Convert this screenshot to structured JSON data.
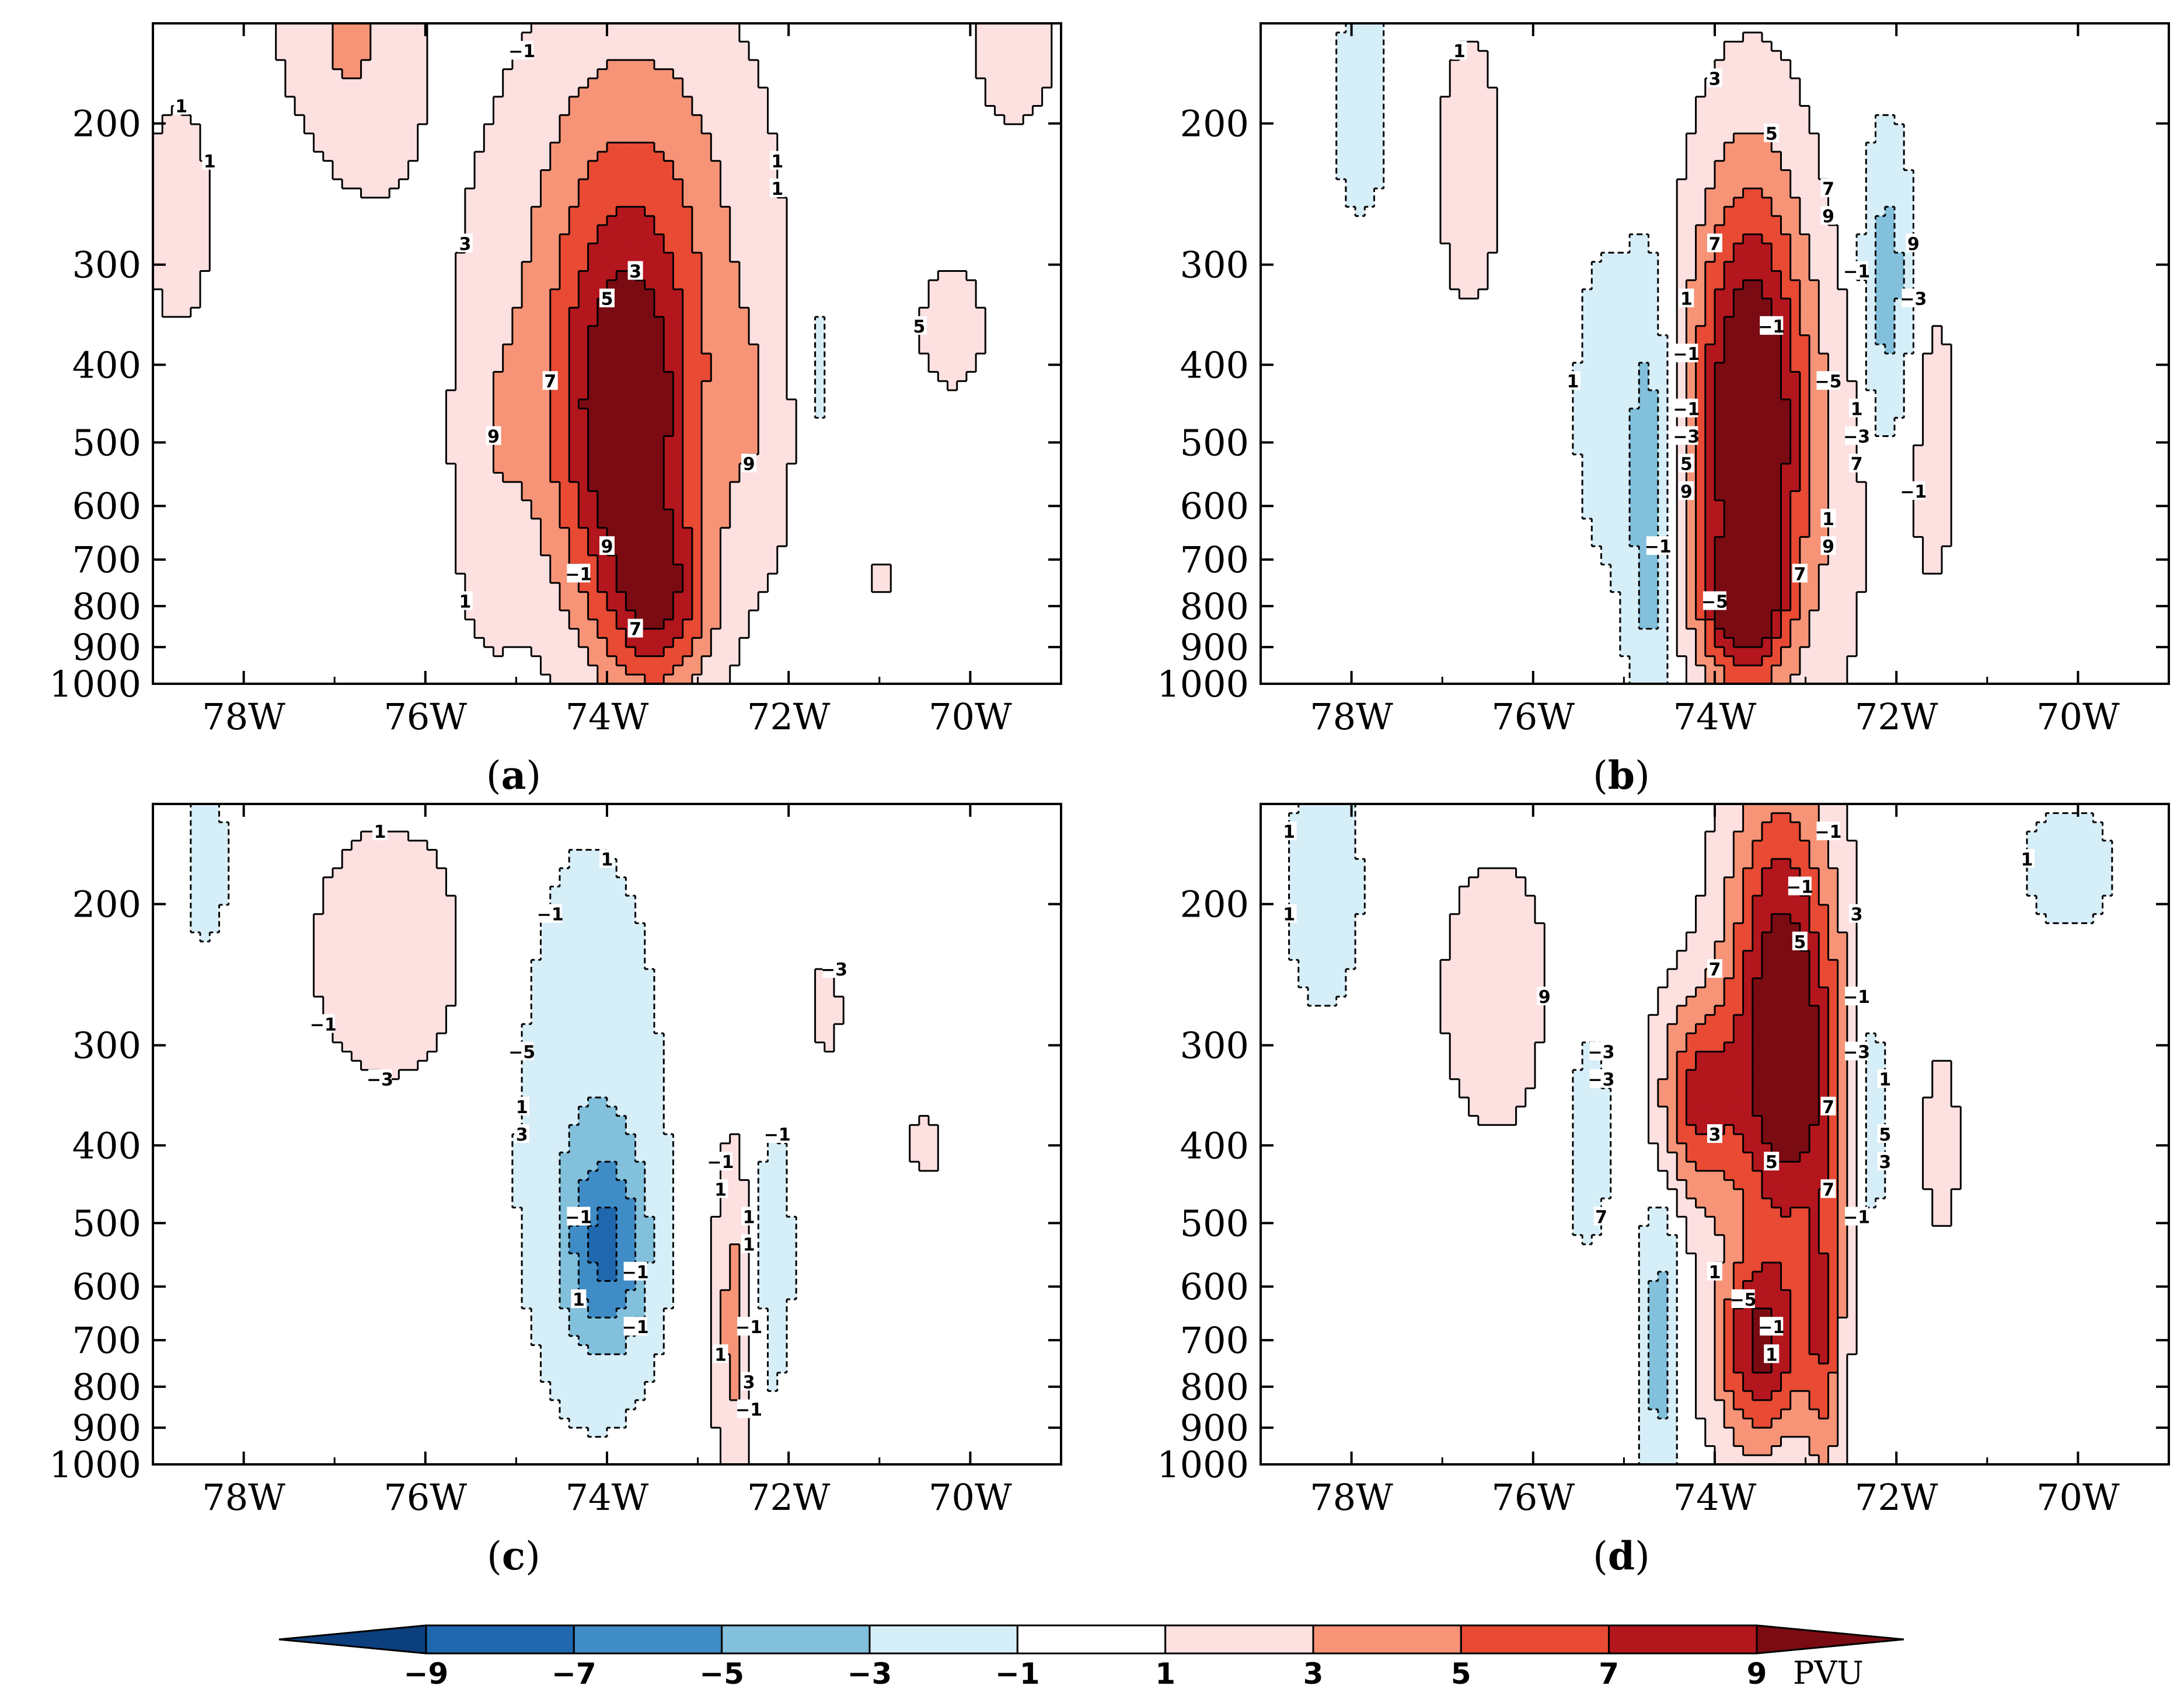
{
  "figure": {
    "colorbar": {
      "levels": [
        "−9",
        "−7",
        "−5",
        "−3",
        "−1",
        "1",
        "3",
        "5",
        "7",
        "9"
      ],
      "unit": "PVU",
      "colors": [
        "#0b3f7e",
        "#1f68ad",
        "#3f8cc6",
        "#82c0dc",
        "#d6eef8",
        "#ffffff",
        "#fde0e0",
        "#f79477",
        "#e84a33",
        "#b4161e",
        "#7a0b12"
      ]
    },
    "style": {
      "axis_color": "#000000",
      "contour_color": "#000000"
    }
  },
  "chart_data": [
    {
      "type": "heatmap",
      "panel": "a",
      "label": "a",
      "title": "",
      "xlabel": "",
      "ylabel": "",
      "xlim": [
        -79,
        -69
      ],
      "ylim": [
        1000,
        150
      ],
      "yscale": "log",
      "x_ticks": [
        -78,
        -76,
        -74,
        -72,
        -70
      ],
      "x_tick_labels": [
        "78W",
        "76W",
        "74W",
        "72W",
        "70W"
      ],
      "y_ticks": [
        200,
        300,
        400,
        500,
        600,
        700,
        800,
        900,
        1000
      ],
      "y_tick_labels": [
        "200",
        "300",
        "400",
        "500",
        "600",
        "700",
        "800",
        "900",
        "1000"
      ],
      "contour_labels": [
        "−1",
        "1",
        "1",
        "1",
        "1",
        "3",
        "3",
        "5",
        "5",
        "7",
        "9",
        "9",
        "9",
        "−1",
        "1",
        "7"
      ],
      "features": [
        {
          "lon": -76.9,
          "lev": 170,
          "amp": 4.0,
          "slon": 0.55,
          "slog": 0.35
        },
        {
          "lon": -77.2,
          "lev": 230,
          "amp": -1.8,
          "slon": 0.55,
          "slog": 0.3
        },
        {
          "lon": -78.7,
          "lev": 260,
          "amp": 1.7,
          "slon": 0.35,
          "slog": 0.3
        },
        {
          "lon": -73.8,
          "lev": 500,
          "amp": 10.0,
          "slon": 0.6,
          "slog": 0.4
        },
        {
          "lon": -73.4,
          "lev": 800,
          "amp": 6.0,
          "slon": 0.4,
          "slog": 0.18
        },
        {
          "lon": -73.7,
          "lev": 260,
          "amp": 4.6,
          "slon": 0.9,
          "slog": 0.45
        },
        {
          "lon": -75.3,
          "lev": 520,
          "amp": 2.2,
          "slon": 0.3,
          "slog": 0.4
        },
        {
          "lon": -72.3,
          "lev": 480,
          "amp": 2.0,
          "slon": 0.3,
          "slog": 0.3
        },
        {
          "lon": -71.7,
          "lev": 400,
          "amp": -1.6,
          "slon": 0.18,
          "slog": 0.3
        },
        {
          "lon": -70.2,
          "lev": 360,
          "amp": 1.9,
          "slon": 0.3,
          "slog": 0.15
        },
        {
          "lon": -71.0,
          "lev": 740,
          "amp": 1.4,
          "slon": 0.15,
          "slog": 0.05
        },
        {
          "lon": -69.5,
          "lev": 160,
          "amp": 1.8,
          "slon": 0.4,
          "slog": 0.2
        }
      ]
    },
    {
      "type": "heatmap",
      "panel": "b",
      "label": "b",
      "title": "",
      "xlabel": "",
      "ylabel": "",
      "xlim": [
        -79,
        -69
      ],
      "ylim": [
        1000,
        150
      ],
      "yscale": "log",
      "x_ticks": [
        -78,
        -76,
        -74,
        -72,
        -70
      ],
      "x_tick_labels": [
        "78W",
        "76W",
        "74W",
        "72W",
        "70W"
      ],
      "y_ticks": [
        200,
        300,
        400,
        500,
        600,
        700,
        800,
        900,
        1000
      ],
      "y_tick_labels": [
        "200",
        "300",
        "400",
        "500",
        "600",
        "700",
        "800",
        "900",
        "1000"
      ],
      "contour_labels": [
        "1",
        "3",
        "5",
        "7",
        "9",
        "7",
        "9",
        "−1",
        "1",
        "−3",
        "−1",
        "−1",
        "1",
        "−5",
        "−1",
        "1",
        "−3",
        "−3",
        "5",
        "7",
        "9",
        "−1",
        "1",
        "−1",
        "9",
        "7",
        "−5"
      ],
      "features": [
        {
          "lon": -73.6,
          "lev": 480,
          "amp": 13.0,
          "slon": 0.45,
          "slog": 0.5
        },
        {
          "lon": -73.7,
          "lev": 800,
          "amp": 6.0,
          "slon": 0.3,
          "slog": 0.12
        },
        {
          "lon": -74.7,
          "lev": 600,
          "amp": -4.5,
          "slon": 0.18,
          "slog": 0.45
        },
        {
          "lon": -72.1,
          "lev": 320,
          "amp": -4.2,
          "slon": 0.2,
          "slog": 0.3
        },
        {
          "lon": -76.7,
          "lev": 230,
          "amp": 1.8,
          "slon": 0.3,
          "slog": 0.35
        },
        {
          "lon": -77.9,
          "lev": 190,
          "amp": -1.7,
          "slon": 0.3,
          "slog": 0.3
        },
        {
          "lon": -71.6,
          "lev": 500,
          "amp": 1.6,
          "slon": 0.25,
          "slog": 0.4
        },
        {
          "lon": -75.2,
          "lev": 450,
          "amp": -1.8,
          "slon": 0.3,
          "slog": 0.4
        },
        {
          "lon": -72.6,
          "lev": 600,
          "amp": 1.4,
          "slon": 0.25,
          "slog": 0.4
        }
      ]
    },
    {
      "type": "heatmap",
      "panel": "c",
      "label": "c",
      "title": "",
      "xlabel": "",
      "ylabel": "",
      "xlim": [
        -79,
        -69
      ],
      "ylim": [
        1000,
        150
      ],
      "yscale": "log",
      "x_ticks": [
        -78,
        -76,
        -74,
        -72,
        -70
      ],
      "x_tick_labels": [
        "78W",
        "76W",
        "74W",
        "72W",
        "70W"
      ],
      "y_ticks": [
        200,
        300,
        400,
        500,
        600,
        700,
        800,
        900,
        1000
      ],
      "y_tick_labels": [
        "200",
        "300",
        "400",
        "500",
        "600",
        "700",
        "800",
        "900",
        "1000"
      ],
      "contour_labels": [
        "1",
        "1",
        "−1",
        "−3",
        "−1",
        "−5",
        "−3",
        "1",
        "3",
        "−1",
        "−1",
        "1",
        "−1",
        "1",
        "1",
        "−1",
        "1",
        "−1",
        "−1",
        "1",
        "3",
        "−1"
      ],
      "features": [
        {
          "lon": -74.0,
          "lev": 540,
          "amp": -5.8,
          "slon": 0.32,
          "slog": 0.2
        },
        {
          "lon": -74.2,
          "lev": 380,
          "amp": -2.5,
          "slon": 0.6,
          "slog": 0.6
        },
        {
          "lon": -72.6,
          "lev": 650,
          "amp": 4.2,
          "slon": 0.15,
          "slog": 0.35
        },
        {
          "lon": -76.4,
          "lev": 230,
          "amp": 2.0,
          "slon": 0.7,
          "slog": 0.3
        },
        {
          "lon": -78.4,
          "lev": 180,
          "amp": -1.5,
          "slon": 0.25,
          "slog": 0.25
        },
        {
          "lon": -72.2,
          "lev": 560,
          "amp": -1.6,
          "slon": 0.25,
          "slog": 0.4
        },
        {
          "lon": -71.6,
          "lev": 270,
          "amp": 1.4,
          "slon": 0.2,
          "slog": 0.15
        },
        {
          "lon": -70.5,
          "lev": 400,
          "amp": 1.4,
          "slon": 0.2,
          "slog": 0.1
        }
      ]
    },
    {
      "type": "heatmap",
      "panel": "d",
      "label": "d",
      "title": "",
      "xlabel": "",
      "ylabel": "",
      "xlim": [
        -79,
        -69
      ],
      "ylim": [
        1000,
        150
      ],
      "yscale": "log",
      "x_ticks": [
        -78,
        -76,
        -74,
        -72,
        -70
      ],
      "x_tick_labels": [
        "78W",
        "76W",
        "74W",
        "72W",
        "70W"
      ],
      "y_ticks": [
        200,
        300,
        400,
        500,
        600,
        700,
        800,
        900,
        1000
      ],
      "y_tick_labels": [
        "200",
        "300",
        "400",
        "500",
        "600",
        "700",
        "800",
        "900",
        "1000"
      ],
      "contour_labels": [
        "1",
        "−1",
        "1",
        "−1",
        "1",
        "3",
        "5",
        "7",
        "9",
        "−1",
        "−3",
        "−3",
        "−3",
        "1",
        "7",
        "3",
        "5",
        "5",
        "3",
        "7",
        "7",
        "−1",
        "1",
        "−5",
        "−1",
        "1"
      ],
      "features": [
        {
          "lon": -73.2,
          "lev": 330,
          "amp": 11.0,
          "slon": 0.45,
          "slog": 0.35
        },
        {
          "lon": -74.2,
          "lev": 350,
          "amp": 7.0,
          "slon": 0.3,
          "slog": 0.2
        },
        {
          "lon": -73.5,
          "lev": 720,
          "amp": 9.0,
          "slon": 0.35,
          "slog": 0.2
        },
        {
          "lon": -72.8,
          "lev": 700,
          "amp": 5.5,
          "slon": 0.15,
          "slog": 0.3
        },
        {
          "lon": -73.3,
          "lev": 190,
          "amp": 5.0,
          "slon": 0.4,
          "slog": 0.3
        },
        {
          "lon": -74.6,
          "lev": 700,
          "amp": -4.2,
          "slon": 0.15,
          "slog": 0.3
        },
        {
          "lon": -72.3,
          "lev": 360,
          "amp": -3.5,
          "slon": 0.15,
          "slog": 0.25
        },
        {
          "lon": -76.4,
          "lev": 260,
          "amp": 1.8,
          "slon": 0.55,
          "slog": 0.35
        },
        {
          "lon": -78.3,
          "lev": 190,
          "amp": -2.0,
          "slon": 0.35,
          "slog": 0.3
        },
        {
          "lon": -75.4,
          "lev": 380,
          "amp": -1.7,
          "slon": 0.25,
          "slog": 0.35
        },
        {
          "lon": -71.5,
          "lev": 400,
          "amp": 1.4,
          "slon": 0.22,
          "slog": 0.3
        },
        {
          "lon": -70.1,
          "lev": 180,
          "amp": -1.4,
          "slon": 0.6,
          "slog": 0.2
        }
      ]
    }
  ]
}
